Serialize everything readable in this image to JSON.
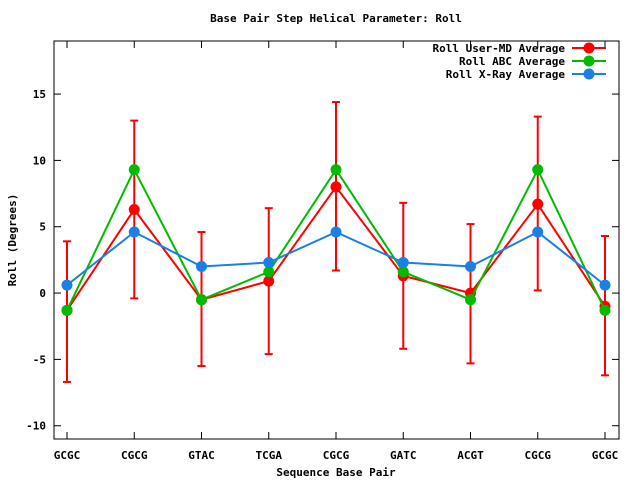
{
  "chart_data": {
    "type": "line",
    "title": "Base Pair Step Helical Parameter: Roll",
    "xlabel": "Sequence Base Pair",
    "ylabel": "Roll (Degrees)",
    "categories": [
      "GCGC",
      "CGCG",
      "GTAC",
      "TCGA",
      "CGCG",
      "GATC",
      "ACGT",
      "CGCG",
      "GCGC"
    ],
    "ylim": [
      -11,
      19
    ],
    "yticks": [
      -10,
      -5,
      0,
      5,
      10,
      15
    ],
    "ytick_labels": [
      "-10",
      "-5",
      "0",
      "5",
      "10",
      "15"
    ],
    "grid": false,
    "legend_position": "top-right",
    "series": [
      {
        "name": "Roll User-MD Average",
        "color": "#ff0000",
        "values": [
          -1.3,
          6.3,
          -0.5,
          0.9,
          8.0,
          1.3,
          0.0,
          6.7,
          -1.0
        ],
        "error_low": [
          -6.7,
          -0.4,
          -5.5,
          -4.6,
          1.7,
          -4.2,
          -5.3,
          0.2,
          -6.2
        ],
        "error_high": [
          3.9,
          13.0,
          4.6,
          6.4,
          14.4,
          6.8,
          5.2,
          13.3,
          4.3
        ]
      },
      {
        "name": "Roll ABC Average",
        "color": "#00bb00",
        "values": [
          -1.3,
          9.3,
          -0.5,
          1.6,
          9.3,
          1.6,
          -0.5,
          9.3,
          -1.3
        ]
      },
      {
        "name": "Roll X-Ray Average",
        "color": "#1a7fe6",
        "values": [
          0.6,
          4.6,
          2.0,
          2.3,
          4.6,
          2.3,
          2.0,
          4.6,
          0.6
        ]
      }
    ]
  }
}
